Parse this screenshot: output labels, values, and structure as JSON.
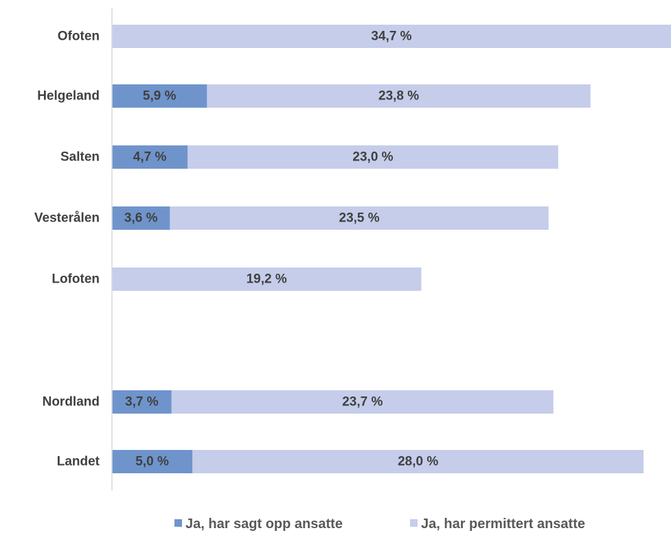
{
  "chart_data": {
    "type": "bar",
    "orientation": "horizontal",
    "stacked": true,
    "categories": [
      "Ofoten",
      "Helgeland",
      "Salten",
      "Vesterålen",
      "Lofoten",
      "",
      "Nordland",
      "Landet"
    ],
    "series": [
      {
        "name": "Ja, har sagt opp ansatte",
        "color": "#6f94cc",
        "values": [
          null,
          5.9,
          4.7,
          3.6,
          null,
          null,
          3.7,
          5.0
        ],
        "labels": [
          "",
          "5,9 %",
          "4,7 %",
          "3,6 %",
          "",
          "",
          "3,7 %",
          "5,0 %"
        ]
      },
      {
        "name": "Ja, har permittert ansatte",
        "color": "#c5cdea",
        "values": [
          34.7,
          23.8,
          23.0,
          23.5,
          19.2,
          null,
          23.7,
          28.0
        ],
        "labels": [
          "34,7 %",
          "23,8 %",
          "23,0 %",
          "23,5 %",
          "19,2 %",
          "",
          "23,7 %",
          "28,0 %"
        ]
      }
    ],
    "xlim": [
      0,
      34.7
    ],
    "grid": false,
    "legend_position": "bottom",
    "axis_color": "#d9d9d9"
  }
}
